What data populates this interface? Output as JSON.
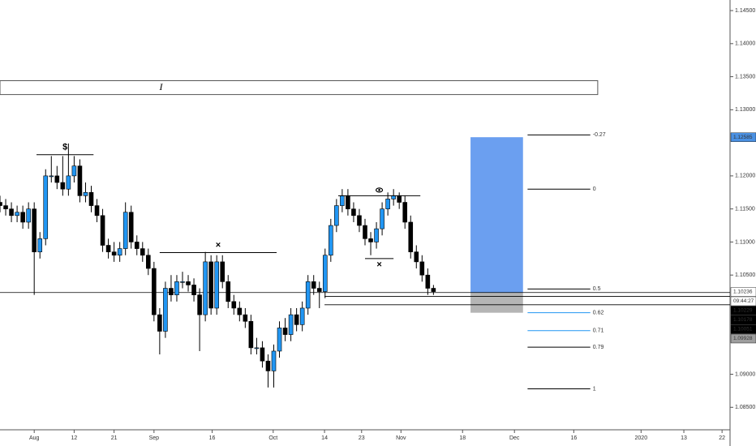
{
  "chart_data": {
    "type": "candlestick",
    "x": [
      -6,
      -5,
      -4,
      -3,
      -2,
      -1,
      0,
      1,
      2,
      3,
      4,
      5,
      6,
      7,
      8,
      9,
      10,
      11,
      12,
      13,
      14,
      15,
      16,
      17,
      18,
      19,
      20,
      21,
      22,
      23,
      24,
      25,
      26,
      27,
      28,
      29,
      30,
      31,
      32,
      33,
      34,
      35,
      36,
      37,
      38,
      39,
      40,
      41,
      42,
      43,
      44,
      45,
      46,
      47,
      48,
      49,
      50,
      51,
      52,
      53,
      54,
      55,
      56,
      57,
      58,
      59,
      60,
      61,
      62,
      63,
      64,
      65,
      66,
      67,
      68,
      69,
      70
    ],
    "open": [
      1.116,
      1.1155,
      1.115,
      1.114,
      1.1145,
      1.113,
      1.115,
      1.1085,
      1.1105,
      1.12,
      1.12,
      1.119,
      1.118,
      1.12,
      1.1215,
      1.117,
      1.1175,
      1.1155,
      1.114,
      1.1095,
      1.1085,
      1.108,
      1.109,
      1.1145,
      1.11,
      1.109,
      1.108,
      1.106,
      1.099,
      1.0965,
      1.103,
      1.102,
      1.104,
      1.104,
      1.1035,
      1.102,
      1.099,
      1.107,
      1.1,
      1.107,
      1.104,
      1.101,
      1.1,
      1.099,
      1.098,
      1.094,
      1.094,
      1.092,
      1.0905,
      1.0935,
      1.097,
      1.096,
      1.099,
      1.0975,
      1.1,
      1.104,
      1.103,
      1.1025,
      1.108,
      1.1125,
      1.1155,
      1.117,
      1.115,
      1.114,
      1.1125,
      1.1105,
      1.11,
      1.112,
      1.115,
      1.1165,
      1.117,
      1.116,
      1.113,
      1.1085,
      1.107,
      1.105,
      1.103
    ],
    "high": [
      1.117,
      1.1165,
      1.116,
      1.1155,
      1.1155,
      1.116,
      1.116,
      1.1115,
      1.121,
      1.123,
      1.1215,
      1.123,
      1.1249,
      1.123,
      1.1225,
      1.119,
      1.1185,
      1.1165,
      1.115,
      1.1105,
      1.11,
      1.11,
      1.116,
      1.1155,
      1.111,
      1.11,
      1.109,
      1.107,
      1.1,
      1.104,
      1.105,
      1.105,
      1.1055,
      1.105,
      1.1045,
      1.103,
      1.1085,
      1.108,
      1.108,
      1.108,
      1.105,
      1.102,
      1.101,
      1.1,
      1.099,
      1.0955,
      1.095,
      1.093,
      1.0945,
      1.098,
      1.0985,
      1.1,
      1.1,
      1.101,
      1.105,
      1.105,
      1.104,
      1.109,
      1.1135,
      1.1165,
      1.118,
      1.118,
      1.116,
      1.115,
      1.1135,
      1.1115,
      1.113,
      1.116,
      1.1175,
      1.118,
      1.1175,
      1.117,
      1.114,
      1.1095,
      1.108,
      1.106,
      1.1035
    ],
    "low": [
      1.1145,
      1.114,
      1.113,
      1.113,
      1.112,
      1.112,
      1.102,
      1.1075,
      1.1095,
      1.119,
      1.118,
      1.117,
      1.117,
      1.119,
      1.116,
      1.116,
      1.1145,
      1.113,
      1.1085,
      1.1075,
      1.107,
      1.107,
      1.108,
      1.109,
      1.108,
      1.107,
      1.105,
      1.098,
      1.093,
      1.0955,
      1.101,
      1.101,
      1.103,
      1.1025,
      1.101,
      1.0935,
      1.098,
      1.099,
      1.099,
      1.103,
      1.1,
      1.099,
      1.098,
      1.097,
      1.093,
      1.093,
      1.091,
      1.088,
      1.088,
      1.0925,
      1.095,
      1.095,
      1.0965,
      1.0965,
      1.099,
      1.102,
      1.1,
      1.1015,
      1.107,
      1.1115,
      1.1145,
      1.114,
      1.113,
      1.1115,
      1.1095,
      1.108,
      1.109,
      1.111,
      1.114,
      1.1155,
      1.115,
      1.112,
      1.1075,
      1.106,
      1.104,
      1.102,
      1.102
    ],
    "close": [
      1.1155,
      1.115,
      1.114,
      1.1145,
      1.113,
      1.115,
      1.1085,
      1.1105,
      1.12,
      1.12,
      1.119,
      1.118,
      1.12,
      1.1215,
      1.117,
      1.1175,
      1.1155,
      1.114,
      1.1095,
      1.1085,
      1.108,
      1.109,
      1.1145,
      1.11,
      1.109,
      1.108,
      1.106,
      1.099,
      1.0965,
      1.103,
      1.102,
      1.104,
      1.104,
      1.1035,
      1.102,
      1.099,
      1.107,
      1.1,
      1.107,
      1.104,
      1.101,
      1.1,
      1.099,
      1.098,
      1.094,
      1.094,
      1.092,
      1.0905,
      1.0935,
      1.097,
      1.096,
      1.099,
      1.0975,
      1.1,
      1.104,
      1.103,
      1.1025,
      1.108,
      1.1125,
      1.1155,
      1.117,
      1.115,
      1.114,
      1.1125,
      1.1105,
      1.11,
      1.112,
      1.115,
      1.1165,
      1.117,
      1.116,
      1.113,
      1.1085,
      1.107,
      1.105,
      1.103,
      1.1025
    ],
    "up_color": "#2196f3",
    "down_color": "#000000",
    "xlim": [
      -6,
      122
    ],
    "xticks": [
      {
        "value": 0,
        "label": "Aug"
      },
      {
        "value": 7,
        "label": "12"
      },
      {
        "value": 14,
        "label": "21"
      },
      {
        "value": 21,
        "label": "Sep"
      },
      {
        "value": 31.2,
        "label": "16"
      },
      {
        "value": 41.9,
        "label": "Oct"
      },
      {
        "value": 50.9,
        "label": "14"
      },
      {
        "value": 57.4,
        "label": "23"
      },
      {
        "value": 64.3,
        "label": "Nov"
      },
      {
        "value": 75.1,
        "label": "18"
      },
      {
        "value": 84.2,
        "label": "Dec"
      },
      {
        "value": 94.6,
        "label": "16"
      },
      {
        "value": 106.4,
        "label": "2020"
      },
      {
        "value": 113.9,
        "label": "13"
      },
      {
        "value": 120.6,
        "label": "22"
      }
    ],
    "ylim": [
      1.0816,
      1.1466
    ],
    "yticks": [
      {
        "value": 1.145,
        "label": "1.14500"
      },
      {
        "value": 1.14,
        "label": "1.14000"
      },
      {
        "value": 1.135,
        "label": "1.13500"
      },
      {
        "value": 1.13,
        "label": "1.13000"
      },
      {
        "value": 1.12,
        "label": "1.12000"
      },
      {
        "value": 1.115,
        "label": "1.11500"
      },
      {
        "value": 1.11,
        "label": "1.11000"
      },
      {
        "value": 1.105,
        "label": "1.10500"
      },
      {
        "value": 1.09,
        "label": "1.09000"
      },
      {
        "value": 1.085,
        "label": "1.08500"
      }
    ],
    "annotations": [
      {
        "text": "$",
        "price": 1.1232,
        "x": [
          0.4,
          10.4
        ]
      },
      {
        "text": "×",
        "price": 1.1084,
        "x": [
          22,
          42.5
        ]
      },
      {
        "text": "×",
        "price": 1.1075,
        "x": [
          58,
          63
        ]
      }
    ],
    "eye_line": {
      "price": 1.117,
      "x": [
        53.3,
        67.7
      ]
    },
    "text_box": {
      "text": "I",
      "price": [
        1.1344,
        1.1323
      ],
      "x": [
        -6,
        98.8
      ]
    },
    "fib_levels": [
      {
        "label": "-0.27",
        "price": 1.1262,
        "color": "#000000"
      },
      {
        "label": "0",
        "price": 1.118,
        "color": "#000000"
      },
      {
        "label": "0.5",
        "price": 1.1029,
        "color": "#000000"
      },
      {
        "label": "0.62",
        "price": 1.0993,
        "color": "#2196f3"
      },
      {
        "label": "0.71",
        "price": 1.0966,
        "color": "#2196f3"
      },
      {
        "label": "0.79",
        "price": 1.0941,
        "color": "#000000"
      },
      {
        "label": "1",
        "price": 1.0878,
        "color": "#000000"
      }
    ],
    "fib_x": [
      86.5,
      97.5
    ],
    "position": {
      "target": 1.12585,
      "entry": 1.10236,
      "stop": 1.0993,
      "x": [
        76.5,
        85.7
      ],
      "target_color": "#6b9ff0",
      "stop_color": "#b5b5b5"
    },
    "level_lines": [
      {
        "price": 1.10236,
        "x": [
          -6,
          122
        ]
      },
      {
        "price": 1.10178,
        "x": [
          50.9,
          122
        ]
      },
      {
        "price": 1.10051,
        "x": [
          50.9,
          122
        ]
      }
    ],
    "price_tags": [
      {
        "value": 1.12585,
        "bg": "#4a90e2",
        "fg": "#ffffff"
      },
      {
        "value": 1.10236,
        "bg": "#ffffff",
        "fg": "#000000"
      },
      {
        "value": "09:44:27",
        "bg": "#ffffff",
        "fg": "#000000"
      },
      {
        "value": 1.10229,
        "bg": "#000000",
        "fg": "#ffffff"
      },
      {
        "value": 1.10178,
        "bg": "#000000",
        "fg": "#ffffff"
      },
      {
        "value": 1.10051,
        "bg": "#000000",
        "fg": "#ffffff"
      },
      {
        "value": 1.09928,
        "bg": "#9e9e9e",
        "fg": "#ffffff"
      }
    ]
  }
}
